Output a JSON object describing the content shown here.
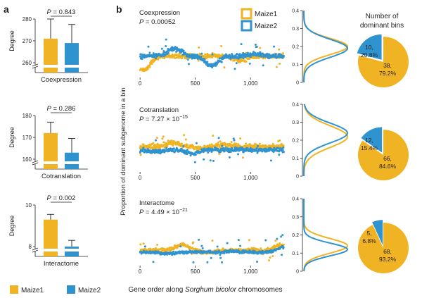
{
  "panel_labels": {
    "a": "a",
    "b": "b"
  },
  "colors": {
    "maize1": "#f0b323",
    "maize2": "#2f93cf",
    "axis": "#231f20",
    "text": "#231f20"
  },
  "legend": {
    "maize1": "Maize1",
    "maize2": "Maize2"
  },
  "scatter_ylabel": "Proportion of dominant subgenome in a bin",
  "scatter_xlabel": {
    "prefix": "Gene order along ",
    "italic": "Sorghum bicolor",
    "suffix": " chromosomes"
  },
  "pie_title": [
    "Number of",
    "dominant bins"
  ],
  "chart_data": [
    {
      "type": "bar",
      "id": "bar-coexpression",
      "title": "Coexpression",
      "ylabel": "Degree",
      "ylim": [
        260,
        280
      ],
      "yticks": [
        "260",
        "270",
        "280"
      ],
      "categories": [
        "Maize1",
        "Maize2"
      ],
      "values": [
        271,
        269
      ],
      "errors": [
        9,
        8.5
      ],
      "p_label": "P = 0.843"
    },
    {
      "type": "bar",
      "id": "bar-cotranslation",
      "title": "Cotranslation",
      "ylabel": "Degree",
      "ylim": [
        160,
        180
      ],
      "yticks": [
        "160",
        "170",
        "180"
      ],
      "categories": [
        "Maize1",
        "Maize2"
      ],
      "values": [
        172,
        163
      ],
      "errors": [
        5,
        6.5
      ],
      "p_label": "P = 0.286"
    },
    {
      "type": "bar",
      "id": "bar-interactome",
      "title": "Interactome",
      "ylabel": "Degree",
      "ylim": [
        8,
        10
      ],
      "yticks": [
        "8",
        "10"
      ],
      "categories": [
        "Maize1",
        "Maize2"
      ],
      "values": [
        9.3,
        8.0
      ],
      "errors": [
        0.25,
        0.3
      ],
      "p_label": "P = 0.002"
    },
    {
      "type": "scatter",
      "id": "scatter-coexpression",
      "title": "Coexpression",
      "p_value": "P = 0.00052",
      "xlim": [
        -20,
        1330
      ],
      "xticks": [
        "0",
        "500",
        "1,000"
      ],
      "ylim": [
        0,
        0.4
      ],
      "series": [
        {
          "name": "Maize1",
          "mean": 0.2,
          "spread": 0.06,
          "variation": [
            [
              30,
              0.05
            ],
            [
              550,
              0.2
            ],
            [
              900,
              0.15
            ]
          ]
        },
        {
          "name": "Maize2",
          "mean": 0.2,
          "spread": 0.06,
          "variation": [
            [
              310,
              0.28
            ],
            [
              650,
              0.1
            ],
            [
              1050,
              0.22
            ]
          ]
        }
      ]
    },
    {
      "type": "scatter",
      "id": "scatter-cotranslation",
      "title": "Cotranslation",
      "p_value": "P = 7.27 × 10",
      "p_exponent": "−15",
      "xlim": [
        -20,
        1330
      ],
      "xticks": [
        "0",
        "500",
        "1,000"
      ],
      "ylim": [
        0,
        0.4
      ],
      "series": [
        {
          "name": "Maize1",
          "mean": 0.26,
          "spread": 0.07,
          "variation": [
            [
              300,
              0.3
            ],
            [
              520,
              0.24
            ],
            [
              760,
              0.28
            ]
          ]
        },
        {
          "name": "Maize2",
          "mean": 0.22,
          "spread": 0.06,
          "variation": [
            [
              150,
              0.2
            ],
            [
              480,
              0.18
            ],
            [
              1050,
              0.22
            ]
          ]
        }
      ]
    },
    {
      "type": "scatter",
      "id": "scatter-interactome",
      "title": "Interactome",
      "p_value": "P = 4.49 × 10",
      "p_exponent": "−21",
      "xlim": [
        -20,
        1330
      ],
      "xticks": [
        "0",
        "500",
        "1,000"
      ],
      "ylim": [
        0,
        0.4
      ],
      "series": [
        {
          "name": "Maize1",
          "mean": 0.14,
          "spread": 0.05,
          "variation": [
            [
              380,
              0.2
            ],
            [
              600,
              0.12
            ],
            [
              1270,
              0.2
            ]
          ]
        },
        {
          "name": "Maize2",
          "mean": 0.12,
          "spread": 0.04,
          "variation": [
            [
              250,
              0.1
            ],
            [
              850,
              0.13
            ],
            [
              1300,
              0.18
            ]
          ]
        }
      ]
    },
    {
      "type": "line",
      "id": "density-coexpression",
      "ylim": [
        0,
        0.4
      ],
      "yticks": [
        "0",
        "0.1",
        "0.2",
        "0.3",
        "0.4"
      ],
      "series": [
        {
          "name": "Maize1",
          "peak_y": 0.2,
          "width": 0.045
        },
        {
          "name": "Maize2",
          "peak_y": 0.19,
          "width": 0.05
        }
      ]
    },
    {
      "type": "line",
      "id": "density-cotranslation",
      "ylim": [
        0,
        0.4
      ],
      "yticks": [
        "0",
        "0.1",
        "0.2",
        "0.3",
        "0.4"
      ],
      "series": [
        {
          "name": "Maize1",
          "peak_y": 0.22,
          "width": 0.06
        },
        {
          "name": "Maize2",
          "peak_y": 0.24,
          "width": 0.055
        }
      ]
    },
    {
      "type": "line",
      "id": "density-interactome",
      "ylim": [
        0,
        0.4
      ],
      "yticks": [
        "0",
        "0.1",
        "0.2",
        "0.3",
        "0.4"
      ],
      "series": [
        {
          "name": "Maize1",
          "peak_y": 0.14,
          "width": 0.04
        },
        {
          "name": "Maize2",
          "peak_y": 0.12,
          "width": 0.035
        }
      ]
    },
    {
      "type": "pie",
      "id": "pie-coexpression",
      "slices": [
        {
          "name": "Maize1",
          "value": 38,
          "label": [
            "38,",
            "79.2%"
          ]
        },
        {
          "name": "Maize2",
          "value": 10,
          "label": [
            "10,",
            "20.8%"
          ]
        }
      ]
    },
    {
      "type": "pie",
      "id": "pie-cotranslation",
      "slices": [
        {
          "name": "Maize1",
          "value": 66,
          "label": [
            "66,",
            "84.6%"
          ]
        },
        {
          "name": "Maize2",
          "value": 12,
          "label": [
            "12,",
            "15.4%"
          ]
        }
      ]
    },
    {
      "type": "pie",
      "id": "pie-interactome",
      "slices": [
        {
          "name": "Maize1",
          "value": 68,
          "label": [
            "68,",
            "93.2%"
          ]
        },
        {
          "name": "Maize2",
          "value": 5,
          "label": [
            "5,",
            "6.8%"
          ]
        }
      ]
    }
  ]
}
